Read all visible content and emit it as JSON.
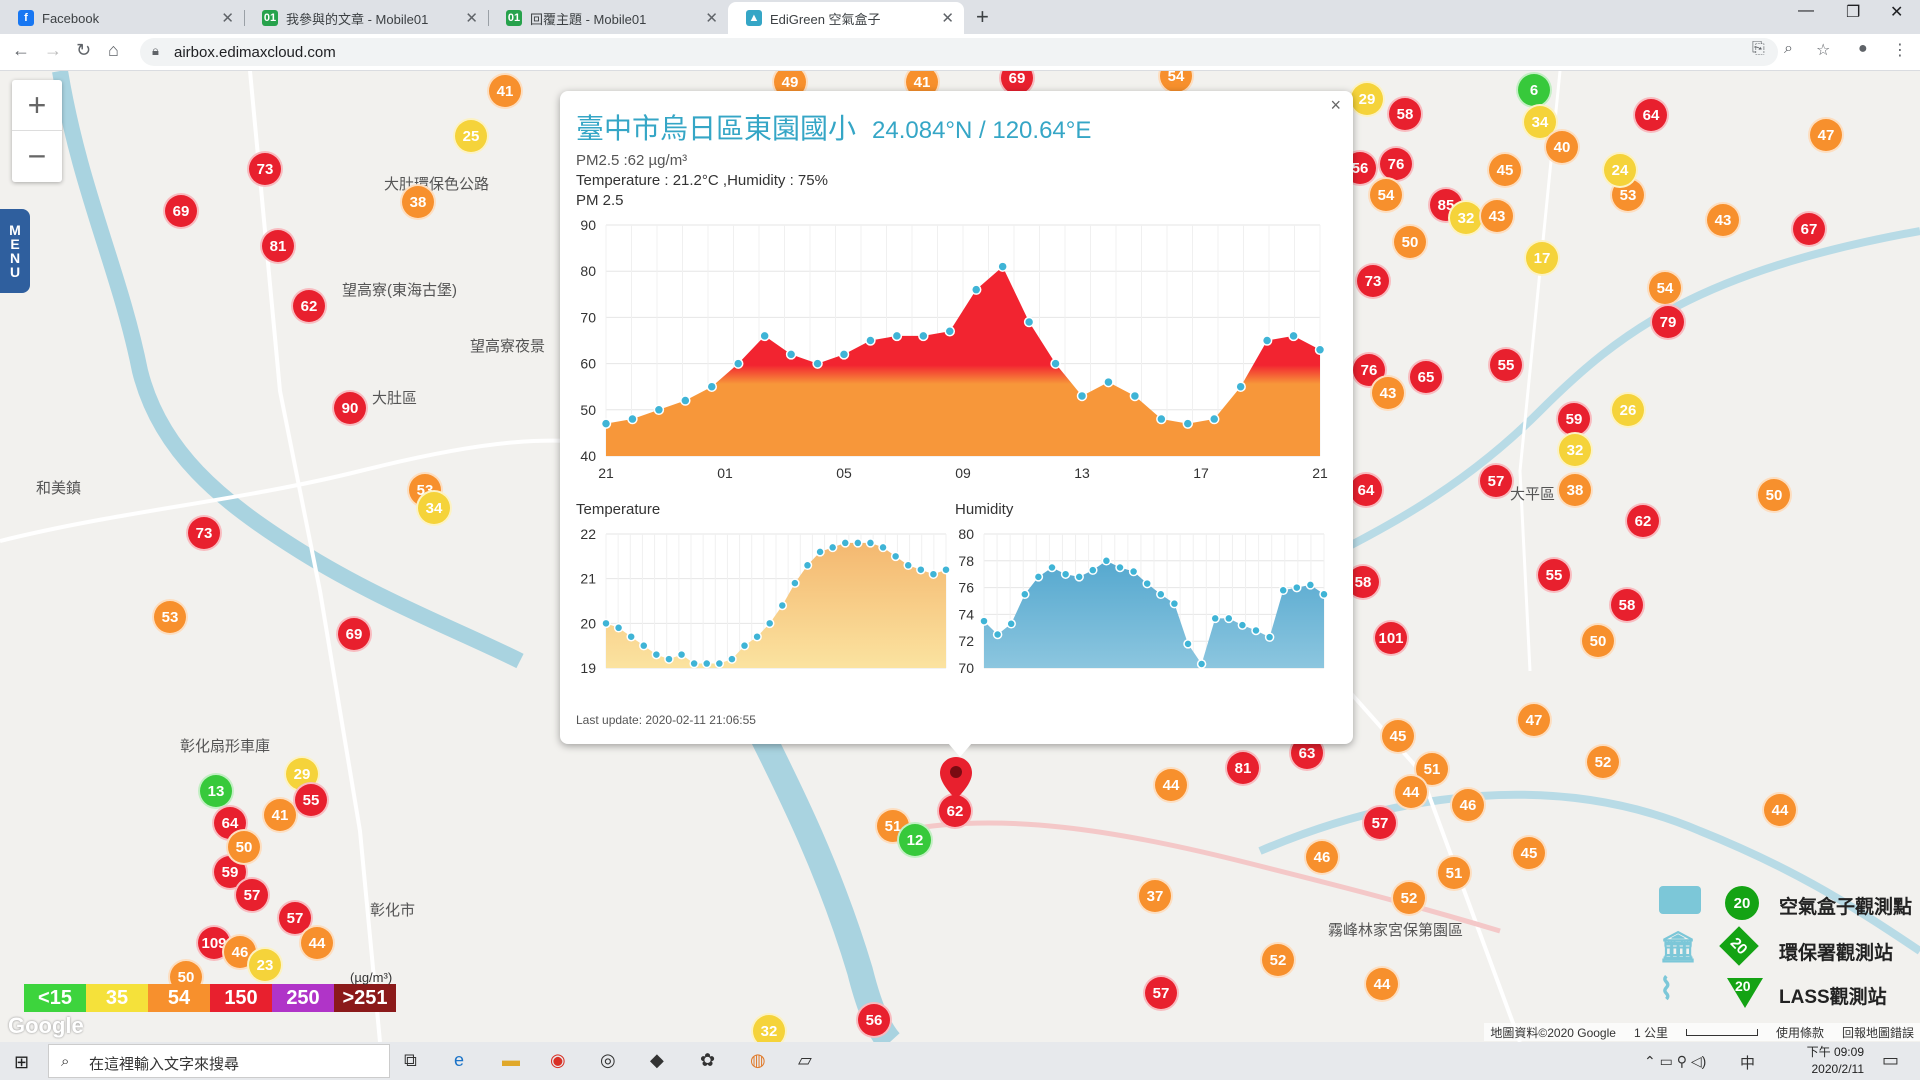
{
  "browser": {
    "tabs": [
      {
        "label": "Facebook",
        "icon": "facebook-icon",
        "color": "#1877f2"
      },
      {
        "label": "我參與的文章 - Mobile01",
        "icon": "mobile01-icon",
        "color": "#27a24c"
      },
      {
        "label": "回覆主題 - Mobile01",
        "icon": "mobile01-icon",
        "color": "#27a24c"
      },
      {
        "label": "EdiGreen 空氣盒子",
        "icon": "edigreen-icon",
        "color": "#35a6c6"
      }
    ],
    "url": "airbox.edimaxcloud.com"
  },
  "map": {
    "labels": [
      {
        "text": "大肚區",
        "name": "label-dadu"
      },
      {
        "text": "和美鎮",
        "name": "label-hemei"
      },
      {
        "text": "彰化市",
        "name": "label-changhua"
      },
      {
        "text": "彰化扇形車庫",
        "name": "label-roundhouse"
      },
      {
        "text": "望高寮(東海古堡)",
        "name": "label-wanggaoliao"
      },
      {
        "text": "望高寮夜景",
        "name": "label-night-view"
      },
      {
        "text": "大肚環保色公路",
        "name": "label-road"
      },
      {
        "text": "霧峰林家宮保第園區",
        "name": "label-wufeng"
      },
      {
        "text": "大平區",
        "name": "label-taiping"
      }
    ],
    "markers": [
      "41",
      "25",
      "73",
      "69",
      "38",
      "81",
      "62",
      "90",
      "53",
      "34",
      "73",
      "53",
      "69",
      "13",
      "29",
      "64",
      "41",
      "55",
      "59",
      "50",
      "57",
      "57",
      "44",
      "109",
      "46",
      "23",
      "50",
      "49",
      "41",
      "69",
      "54",
      "29",
      "58",
      "64",
      "6",
      "34",
      "40",
      "47",
      "56",
      "76",
      "54",
      "45",
      "53",
      "24",
      "85",
      "32",
      "43",
      "67",
      "50",
      "17",
      "73",
      "54",
      "79",
      "43",
      "76",
      "65",
      "55",
      "43",
      "64",
      "59",
      "26",
      "32",
      "57",
      "38",
      "62",
      "50",
      "58",
      "55",
      "50",
      "101",
      "58",
      "45",
      "47",
      "51",
      "52",
      "44",
      "46",
      "44",
      "81",
      "63",
      "57",
      "46",
      "52",
      "51",
      "45",
      "37",
      "51",
      "12",
      "62",
      "44",
      "52",
      "44",
      "57",
      "56",
      "32"
    ],
    "footer_copyright": "地圖資料©2020 Google",
    "scale": "1 公里",
    "terms": "使用條款",
    "report": "回報地圖錯誤",
    "google": "Google"
  },
  "controls": {
    "zoom_in": "+",
    "zoom_out": "−",
    "menu": "MENU"
  },
  "legend": {
    "aqi": [
      {
        "label": "<15",
        "color": "#3dd43d"
      },
      {
        "label": "35",
        "color": "#f5e13a"
      },
      {
        "label": "54",
        "color": "#f7902d"
      },
      {
        "label": "150",
        "color": "#e8202e"
      },
      {
        "label": "250",
        "color": "#b034c8"
      },
      {
        "label": ">251",
        "color": "#8b1a1a"
      }
    ],
    "unit": "(µg/m³)",
    "sites": [
      {
        "label": "空氣盒子觀測點",
        "value": "20"
      },
      {
        "label": "環保署觀測站",
        "value": "20"
      },
      {
        "label": "LASS觀測站",
        "value": "20"
      }
    ]
  },
  "popup": {
    "title": "臺中市烏日區東園國小",
    "coords": "24.084°N / 120.64°E",
    "pm_line": "PM2.5 :62 µg/m³",
    "temp_line": "Temperature : 21.2°C ,Humidity : 75%",
    "chart_title": "PM 2.5",
    "last_update": "Last update: 2020-02-11 21:06:55",
    "close": "×"
  },
  "chart_data": [
    {
      "type": "area",
      "title": "PM 2.5",
      "x_ticks": [
        "21",
        "01",
        "05",
        "09",
        "13",
        "17",
        "21"
      ],
      "y_ticks": [
        40,
        50,
        60,
        70,
        80,
        90
      ],
      "ylim": [
        40,
        90
      ],
      "values": [
        47,
        48,
        50,
        52,
        55,
        60,
        66,
        62,
        60,
        62,
        65,
        66,
        66,
        67,
        76,
        81,
        69,
        60,
        53,
        56,
        53,
        48,
        47,
        48,
        55,
        65,
        66,
        63
      ],
      "grid": true
    },
    {
      "type": "area",
      "title": "Temperature",
      "y_ticks": [
        19,
        20,
        21,
        22
      ],
      "ylim": [
        19,
        22
      ],
      "values": [
        20.0,
        19.9,
        19.7,
        19.5,
        19.3,
        19.2,
        19.3,
        19.1,
        19.1,
        19.1,
        19.2,
        19.5,
        19.7,
        20.0,
        20.4,
        20.9,
        21.3,
        21.6,
        21.7,
        21.8,
        21.8,
        21.8,
        21.7,
        21.5,
        21.3,
        21.2,
        21.1,
        21.2
      ],
      "grid": true
    },
    {
      "type": "area",
      "title": "Humidity",
      "y_ticks": [
        70,
        72,
        74,
        76,
        78,
        80
      ],
      "ylim": [
        70,
        80
      ],
      "values": [
        73.5,
        72.5,
        73.3,
        75.5,
        76.8,
        77.5,
        77.0,
        76.8,
        77.3,
        78.0,
        77.5,
        77.2,
        76.3,
        75.5,
        74.8,
        71.8,
        70.3,
        73.7,
        73.7,
        73.2,
        72.8,
        72.3,
        75.8,
        76.0,
        76.2,
        75.5
      ],
      "grid": true
    }
  ],
  "taskbar": {
    "search_placeholder": "在這裡輸入文字來搜尋",
    "time": "下午 09:09",
    "date": "2020/2/11",
    "ime": "中"
  }
}
